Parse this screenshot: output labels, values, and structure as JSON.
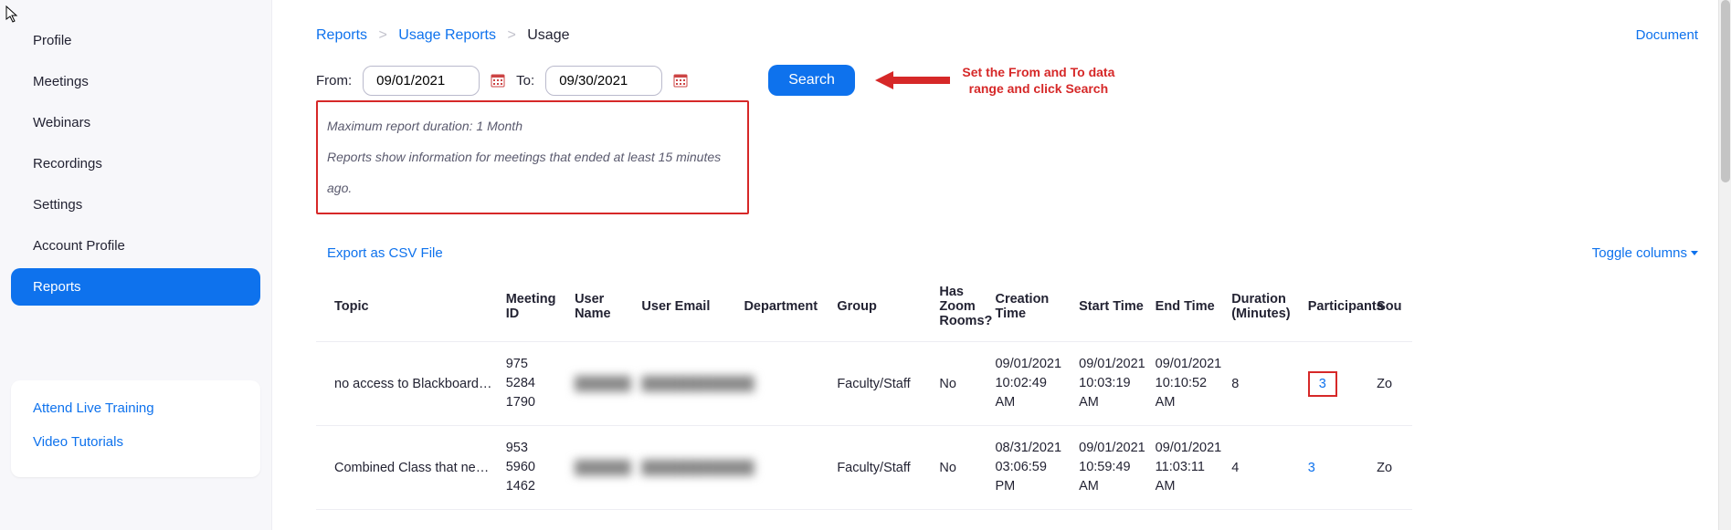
{
  "sidebar": {
    "items": [
      {
        "label": "Profile",
        "active": false
      },
      {
        "label": "Meetings",
        "active": false
      },
      {
        "label": "Webinars",
        "active": false
      },
      {
        "label": "Recordings",
        "active": false
      },
      {
        "label": "Settings",
        "active": false
      },
      {
        "label": "Account Profile",
        "active": false
      },
      {
        "label": "Reports",
        "active": true
      }
    ],
    "help_links": [
      {
        "label": "Attend Live Training"
      },
      {
        "label": "Video Tutorials"
      }
    ]
  },
  "breadcrumb": {
    "root": "Reports",
    "mid": "Usage Reports",
    "current": "Usage"
  },
  "doc_link": {
    "label": "Document"
  },
  "filter": {
    "from_label": "From:",
    "to_label": "To:",
    "from_value": "09/01/2021",
    "to_value": "09/30/2021",
    "search_label": "Search"
  },
  "annotation": {
    "text": "Set the From and To data range and click Search",
    "color": "#d62828"
  },
  "notes": {
    "line1": "Maximum report duration: 1 Month",
    "line2": "Reports show information for meetings that ended at least 15 minutes ago."
  },
  "table_actions": {
    "export_label": "Export as CSV File",
    "toggle_label": "Toggle columns"
  },
  "table": {
    "columns": {
      "topic": "Topic",
      "meeting_id": "Meeting ID",
      "user_name": "User Name",
      "user_email": "User Email",
      "department": "Department",
      "group": "Group",
      "has_rooms": "Has Zoom Rooms?",
      "creation_time": "Creation Time",
      "start_time": "Start Time",
      "end_time": "End Time",
      "duration": "Duration (Minutes)",
      "participants": "Participants",
      "source": "Sou"
    },
    "rows": [
      {
        "topic": "no access to Blackboard cour…",
        "meeting_id": "975 5284 1790",
        "user_name": "██████",
        "user_email": "████████████",
        "department": "",
        "group": "Faculty/Staff",
        "has_rooms": "No",
        "creation_time": "09/01/2021 10:02:49 AM",
        "start_time": "09/01/2021 10:03:19 AM",
        "end_time": "09/01/2021 10:10:52 AM",
        "duration": "8",
        "participants": "3",
        "participants_highlight": true,
        "source": "Zo"
      },
      {
        "topic": "Combined Class that needs t…",
        "meeting_id": "953 5960 1462",
        "user_name": "██████",
        "user_email": "████████████",
        "department": "",
        "group": "Faculty/Staff",
        "has_rooms": "No",
        "creation_time": "08/31/2021 03:06:59 PM",
        "start_time": "09/01/2021 10:59:49 AM",
        "end_time": "09/01/2021 11:03:11 AM",
        "duration": "4",
        "participants": "3",
        "participants_highlight": false,
        "source": "Zo"
      }
    ]
  },
  "colors": {
    "accent": "#0e72ed",
    "sidebar_bg": "#f7f7fa",
    "annotation": "#d62828",
    "border": "#ededf3",
    "text": "#232333"
  }
}
